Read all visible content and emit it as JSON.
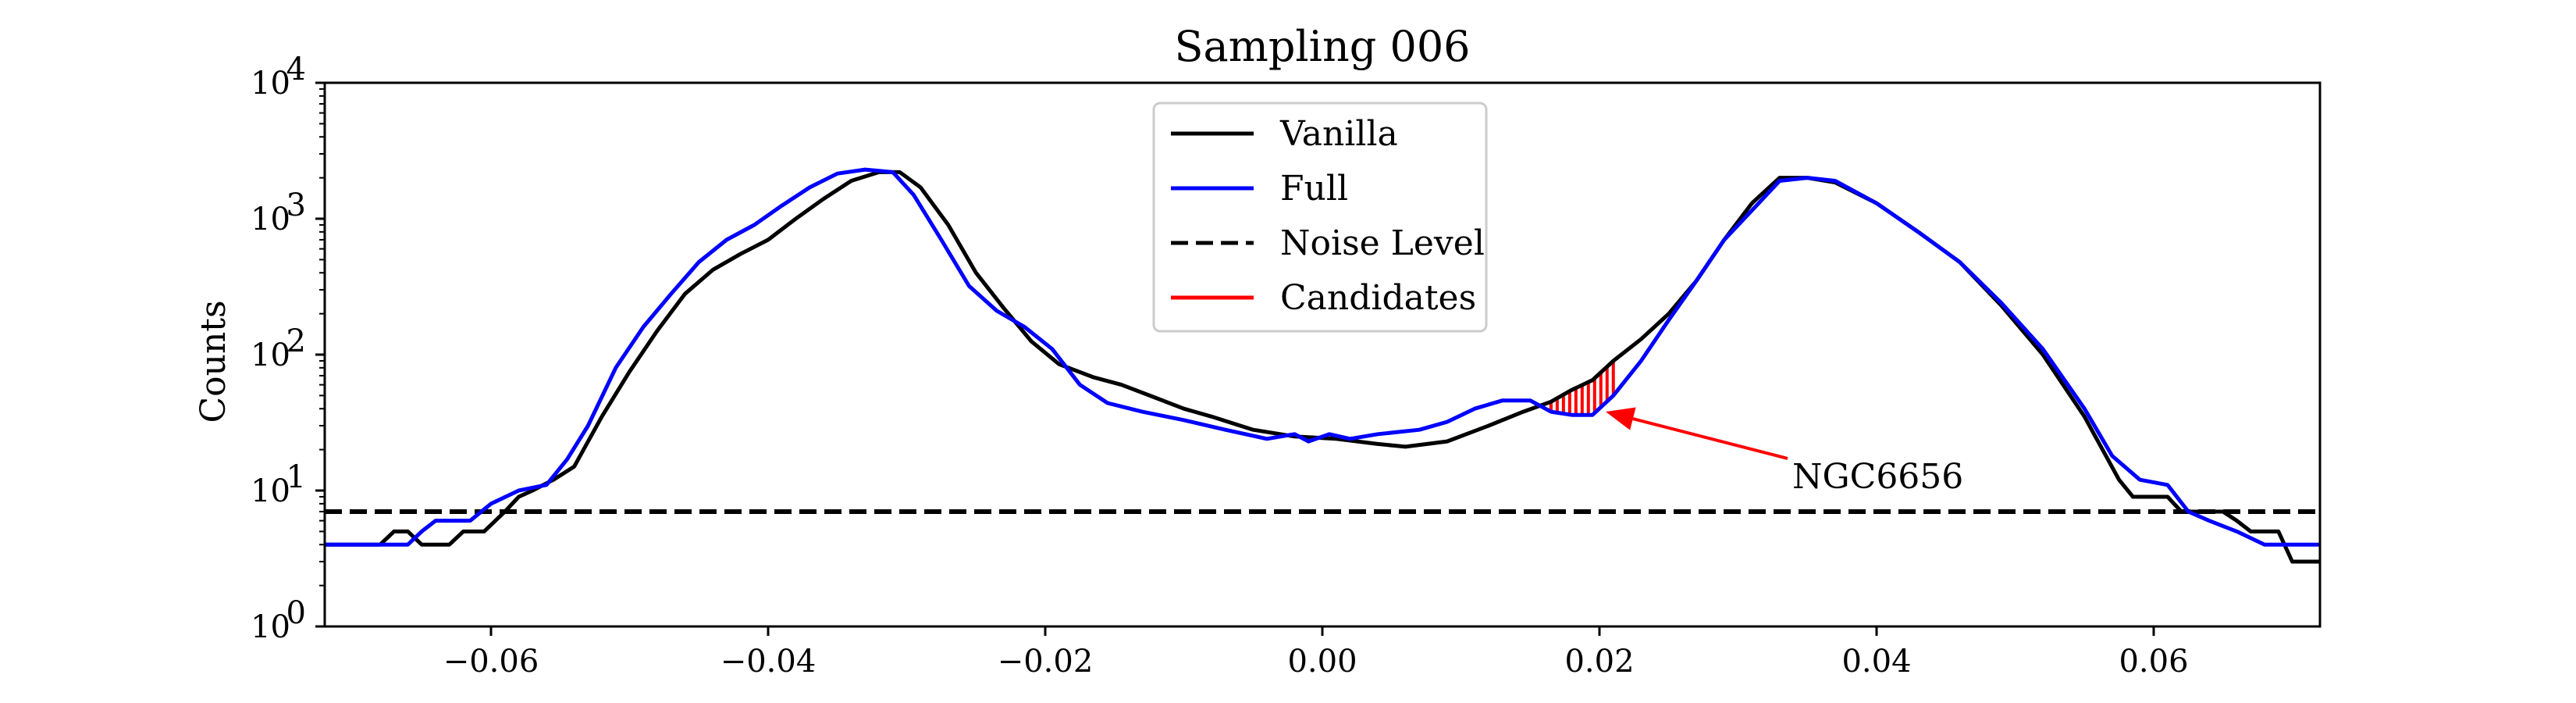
{
  "chart_data": {
    "type": "line",
    "title": "Sampling 006",
    "ylabel": "Counts",
    "xlabel": "",
    "y_scale": "log",
    "xlim": [
      -0.072,
      0.072
    ],
    "ylim": [
      1,
      10000
    ],
    "x_ticks": [
      {
        "value": -0.06,
        "label": "−0.06"
      },
      {
        "value": -0.04,
        "label": "−0.04"
      },
      {
        "value": -0.02,
        "label": "−0.02"
      },
      {
        "value": 0.0,
        "label": "0.00"
      },
      {
        "value": 0.02,
        "label": "0.02"
      },
      {
        "value": 0.04,
        "label": "0.04"
      },
      {
        "value": 0.06,
        "label": "0.06"
      }
    ],
    "y_ticks": [
      {
        "value": 1,
        "base": "10",
        "exp": "0"
      },
      {
        "value": 10,
        "base": "10",
        "exp": "1"
      },
      {
        "value": 100,
        "base": "10",
        "exp": "2"
      },
      {
        "value": 1000,
        "base": "10",
        "exp": "3"
      },
      {
        "value": 10000,
        "base": "10",
        "exp": "4"
      }
    ],
    "grid": false,
    "legend": {
      "placement": "upper center",
      "entries": [
        {
          "label": "Vanilla",
          "color": "#000000",
          "style": "solid"
        },
        {
          "label": "Full",
          "color": "#0000ff",
          "style": "solid"
        },
        {
          "label": "Noise Level",
          "color": "#000000",
          "style": "dashed"
        },
        {
          "label": "Candidates",
          "color": "#ff0000",
          "style": "solid"
        }
      ]
    },
    "series": [
      {
        "name": "Vanilla",
        "color": "#000000",
        "points": [
          [
            -0.072,
            4
          ],
          [
            -0.068,
            4
          ],
          [
            -0.067,
            5
          ],
          [
            -0.066,
            5
          ],
          [
            -0.065,
            4
          ],
          [
            -0.063,
            4
          ],
          [
            -0.062,
            5
          ],
          [
            -0.0605,
            5
          ],
          [
            -0.059,
            7
          ],
          [
            -0.058,
            9
          ],
          [
            -0.057,
            10
          ],
          [
            -0.0555,
            12
          ],
          [
            -0.054,
            15
          ],
          [
            -0.052,
            35
          ],
          [
            -0.05,
            75
          ],
          [
            -0.048,
            150
          ],
          [
            -0.046,
            280
          ],
          [
            -0.044,
            420
          ],
          [
            -0.042,
            550
          ],
          [
            -0.04,
            700
          ],
          [
            -0.038,
            1000
          ],
          [
            -0.036,
            1400
          ],
          [
            -0.034,
            1900
          ],
          [
            -0.032,
            2200
          ],
          [
            -0.0305,
            2200
          ],
          [
            -0.029,
            1700
          ],
          [
            -0.027,
            900
          ],
          [
            -0.025,
            400
          ],
          [
            -0.023,
            220
          ],
          [
            -0.021,
            125
          ],
          [
            -0.019,
            85
          ],
          [
            -0.0165,
            68
          ],
          [
            -0.0145,
            60
          ],
          [
            -0.012,
            48
          ],
          [
            -0.01,
            40
          ],
          [
            -0.008,
            35
          ],
          [
            -0.005,
            28
          ],
          [
            -0.002,
            25
          ],
          [
            0.001,
            24
          ],
          [
            0.004,
            22
          ],
          [
            0.006,
            21
          ],
          [
            0.009,
            23
          ],
          [
            0.012,
            30
          ],
          [
            0.0145,
            38
          ],
          [
            0.0165,
            45
          ],
          [
            0.018,
            55
          ],
          [
            0.0195,
            65
          ],
          [
            0.021,
            90
          ],
          [
            0.023,
            130
          ],
          [
            0.025,
            200
          ],
          [
            0.027,
            350
          ],
          [
            0.029,
            700
          ],
          [
            0.031,
            1300
          ],
          [
            0.033,
            2000
          ],
          [
            0.035,
            2000
          ],
          [
            0.037,
            1850
          ],
          [
            0.04,
            1300
          ],
          [
            0.043,
            800
          ],
          [
            0.046,
            480
          ],
          [
            0.049,
            230
          ],
          [
            0.052,
            100
          ],
          [
            0.055,
            35
          ],
          [
            0.0575,
            12
          ],
          [
            0.0585,
            9
          ],
          [
            0.061,
            9
          ],
          [
            0.062,
            7
          ],
          [
            0.065,
            7
          ],
          [
            0.066,
            6
          ],
          [
            0.067,
            5
          ],
          [
            0.069,
            5
          ],
          [
            0.07,
            3
          ],
          [
            0.072,
            3
          ]
        ]
      },
      {
        "name": "Full",
        "color": "#0000ff",
        "points": [
          [
            -0.072,
            4
          ],
          [
            -0.066,
            4
          ],
          [
            -0.065,
            5
          ],
          [
            -0.064,
            6
          ],
          [
            -0.0615,
            6
          ],
          [
            -0.06,
            8
          ],
          [
            -0.058,
            10
          ],
          [
            -0.056,
            11
          ],
          [
            -0.0545,
            17
          ],
          [
            -0.053,
            30
          ],
          [
            -0.051,
            80
          ],
          [
            -0.049,
            160
          ],
          [
            -0.047,
            280
          ],
          [
            -0.045,
            480
          ],
          [
            -0.043,
            700
          ],
          [
            -0.041,
            900
          ],
          [
            -0.039,
            1250
          ],
          [
            -0.037,
            1700
          ],
          [
            -0.035,
            2150
          ],
          [
            -0.033,
            2300
          ],
          [
            -0.031,
            2200
          ],
          [
            -0.0295,
            1500
          ],
          [
            -0.0275,
            700
          ],
          [
            -0.0255,
            320
          ],
          [
            -0.0235,
            210
          ],
          [
            -0.0215,
            160
          ],
          [
            -0.0195,
            110
          ],
          [
            -0.0175,
            60
          ],
          [
            -0.0155,
            44
          ],
          [
            -0.013,
            38
          ],
          [
            -0.01,
            33
          ],
          [
            -0.007,
            28
          ],
          [
            -0.004,
            24
          ],
          [
            -0.002,
            26
          ],
          [
            -0.001,
            23
          ],
          [
            0.0005,
            26
          ],
          [
            0.002,
            24
          ],
          [
            0.004,
            26
          ],
          [
            0.007,
            28
          ],
          [
            0.009,
            32
          ],
          [
            0.011,
            40
          ],
          [
            0.013,
            46
          ],
          [
            0.015,
            46
          ],
          [
            0.0165,
            38
          ],
          [
            0.018,
            36
          ],
          [
            0.0195,
            36
          ],
          [
            0.021,
            50
          ],
          [
            0.023,
            90
          ],
          [
            0.025,
            180
          ],
          [
            0.027,
            350
          ],
          [
            0.029,
            700
          ],
          [
            0.031,
            1150
          ],
          [
            0.033,
            1900
          ],
          [
            0.035,
            2000
          ],
          [
            0.037,
            1900
          ],
          [
            0.04,
            1300
          ],
          [
            0.043,
            800
          ],
          [
            0.046,
            480
          ],
          [
            0.049,
            240
          ],
          [
            0.052,
            110
          ],
          [
            0.055,
            40
          ],
          [
            0.057,
            18
          ],
          [
            0.059,
            12
          ],
          [
            0.061,
            11
          ],
          [
            0.0625,
            7
          ],
          [
            0.064,
            6
          ],
          [
            0.066,
            5
          ],
          [
            0.068,
            4
          ],
          [
            0.069,
            4
          ],
          [
            0.072,
            4
          ]
        ]
      }
    ],
    "noise_level": {
      "name": "Noise Level",
      "value": 7,
      "color": "#000000"
    },
    "candidate_region": {
      "name": "Candidates",
      "x_range": [
        0.0165,
        0.021
      ],
      "color": "#ff0000"
    },
    "annotation": {
      "text": "NGC6656",
      "x": 0.02,
      "y": 38,
      "color": "#ff0000"
    }
  }
}
